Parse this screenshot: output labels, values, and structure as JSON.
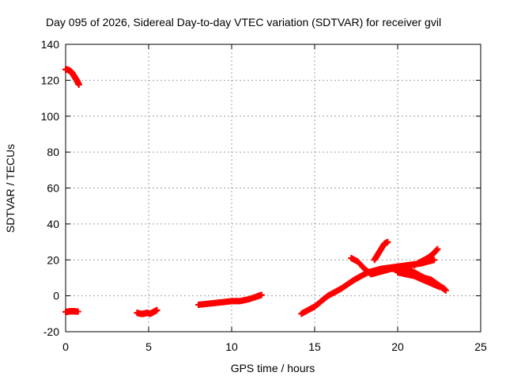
{
  "chart_data": {
    "type": "scatter",
    "title": "Day 095 of 2026, Sidereal Day-to-day VTEC variation (SDTVAR) for receiver gvil",
    "xlabel": "GPS time / hours",
    "ylabel": "SDTVAR / TECUs",
    "xlim": [
      0,
      25
    ],
    "ylim": [
      -20,
      140
    ],
    "xticks": [
      0,
      5,
      10,
      15,
      20,
      25
    ],
    "yticks": [
      -20,
      0,
      20,
      40,
      60,
      80,
      100,
      120,
      140
    ],
    "grid": true,
    "legend": "none",
    "marker": "plus",
    "color": "#ff0000",
    "series": [
      {
        "x": [
          0.0,
          0.1,
          0.2,
          0.3,
          0.4,
          0.5,
          0.6,
          0.7,
          0.8
        ],
        "y": [
          126,
          126,
          125.5,
          125,
          124,
          122.5,
          121,
          119.5,
          117.5
        ]
      },
      {
        "x": [
          0.0,
          0.15,
          0.3,
          0.45,
          0.6,
          0.75
        ],
        "y": [
          -9,
          -8.8,
          -8.6,
          -8.6,
          -8.7,
          -8.8
        ]
      },
      {
        "x": [
          4.3,
          4.5,
          4.7,
          4.9,
          5.1,
          5.3,
          5.5
        ],
        "y": [
          -9.5,
          -10,
          -10,
          -9.5,
          -10,
          -9,
          -8
        ]
      },
      {
        "x": [
          8.0,
          8.5,
          9.0,
          9.5,
          10.0,
          10.5,
          11.0,
          11.5,
          11.8
        ],
        "y": [
          -5,
          -4.5,
          -4,
          -3.5,
          -3,
          -3,
          -2,
          -0.5,
          0.5
        ]
      },
      {
        "x": [
          14.2,
          14.6,
          15.0,
          15.4,
          15.8,
          16.2,
          16.6,
          17.0,
          17.4,
          17.8,
          18.2,
          18.6,
          19.0,
          19.4,
          19.8,
          20.2,
          20.6,
          21.0,
          21.4,
          21.8,
          22.2
        ],
        "y": [
          -10,
          -8,
          -6,
          -3,
          0,
          2,
          4,
          6.5,
          9,
          11,
          13,
          14,
          15,
          15.5,
          16,
          16.5,
          17,
          17.5,
          18,
          19,
          20
        ]
      },
      {
        "x": [
          17.2,
          17.6,
          18.0,
          18.4,
          18.8,
          19.2,
          19.6,
          20.0,
          20.4,
          20.8,
          21.2,
          21.6,
          22.0,
          22.4,
          22.8
        ],
        "y": [
          21,
          19,
          15,
          12,
          13,
          14,
          15,
          15,
          14,
          13,
          11,
          9,
          8,
          6,
          4
        ]
      },
      {
        "x": [
          18.6,
          18.8,
          19.0,
          19.2,
          19.4
        ],
        "y": [
          20,
          23,
          26,
          29,
          30
        ]
      },
      {
        "x": [
          20.4,
          20.8,
          21.2,
          21.6,
          22.0,
          22.3,
          22.6,
          22.9
        ],
        "y": [
          16,
          14,
          12,
          10,
          9,
          7,
          5,
          3
        ]
      },
      {
        "x": [
          21.0,
          21.4,
          21.8,
          22.1,
          22.4
        ],
        "y": [
          17,
          19,
          21,
          23,
          26
        ]
      },
      {
        "x": [
          20.0,
          20.5,
          21.0,
          21.5,
          22.0,
          22.5
        ],
        "y": [
          13,
          12,
          11,
          9,
          7,
          5
        ]
      }
    ]
  }
}
